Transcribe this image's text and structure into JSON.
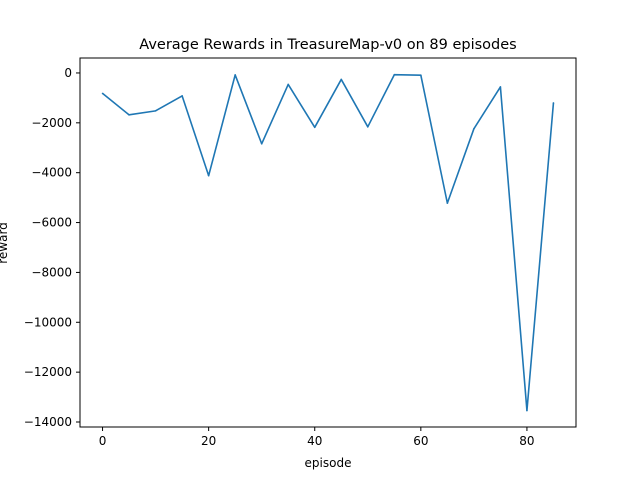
{
  "chart_data": {
    "type": "line",
    "title": "Average Rewards in TreasureMap-v0 on 89 episodes",
    "xlabel": "episode",
    "ylabel": "reward",
    "xlim": [
      -4.25,
      89.25
    ],
    "ylim": [
      -14200,
      600
    ],
    "xticks": [
      0,
      20,
      40,
      60,
      80
    ],
    "yticks": [
      0,
      -2000,
      -4000,
      -6000,
      -8000,
      -10000,
      -12000,
      -14000
    ],
    "grid": false,
    "series": [
      {
        "color": "#1f77b4",
        "x": [
          0,
          5,
          10,
          15,
          20,
          25,
          30,
          35,
          40,
          45,
          50,
          55,
          60,
          65,
          70,
          75,
          80,
          85
        ],
        "y": [
          -820,
          -1680,
          -1520,
          -920,
          -4120,
          -80,
          -2840,
          -460,
          -2180,
          -260,
          -2160,
          -70,
          -90,
          -5220,
          -2240,
          -560,
          -13540,
          -1200
        ]
      }
    ]
  }
}
